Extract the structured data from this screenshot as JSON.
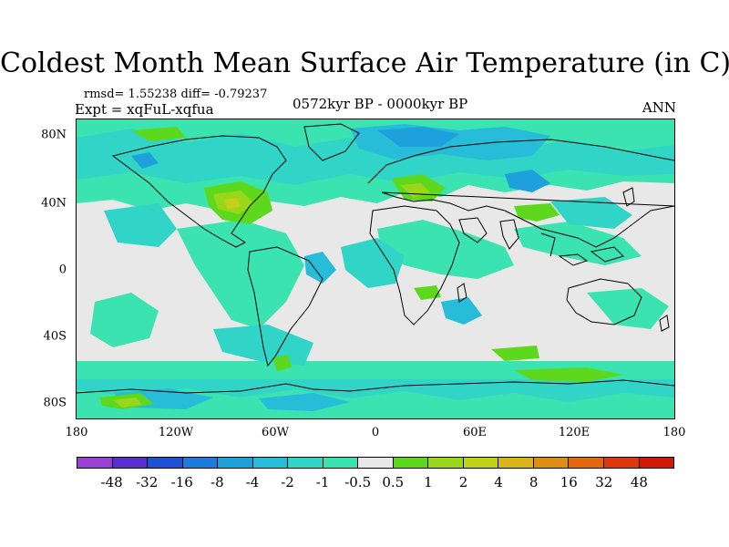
{
  "title": "Coldest Month Mean Surface Air Temperature (in C)",
  "stats": "rmsd= 1.55238 diff= -0.79237",
  "expt": "Expt = xqFuL-xqfua",
  "period": "0572kyr BP - 0000kyr BP",
  "season": "ANN",
  "lat_ticks": [
    "80N",
    "40N",
    "0",
    "40S",
    "80S"
  ],
  "lon_ticks": [
    "180",
    "120W",
    "60W",
    "0",
    "60E",
    "120E",
    "180"
  ],
  "colorbar": {
    "labels": [
      "-48",
      "-32",
      "-16",
      "-8",
      "-4",
      "-2",
      "-1",
      "-0.5",
      "0.5",
      "1",
      "2",
      "4",
      "8",
      "16",
      "32",
      "48"
    ],
    "colors": [
      "#9b3fd6",
      "#5a2fd1",
      "#1e50d8",
      "#1c7be0",
      "#1ea0dc",
      "#27bcd8",
      "#31d5c8",
      "#3be3b0",
      "#e8e8e8",
      "#5ed81c",
      "#9ad71a",
      "#c2d21a",
      "#d9b416",
      "#e08e12",
      "#e4660e",
      "#e0380c",
      "#d01a08"
    ]
  }
}
